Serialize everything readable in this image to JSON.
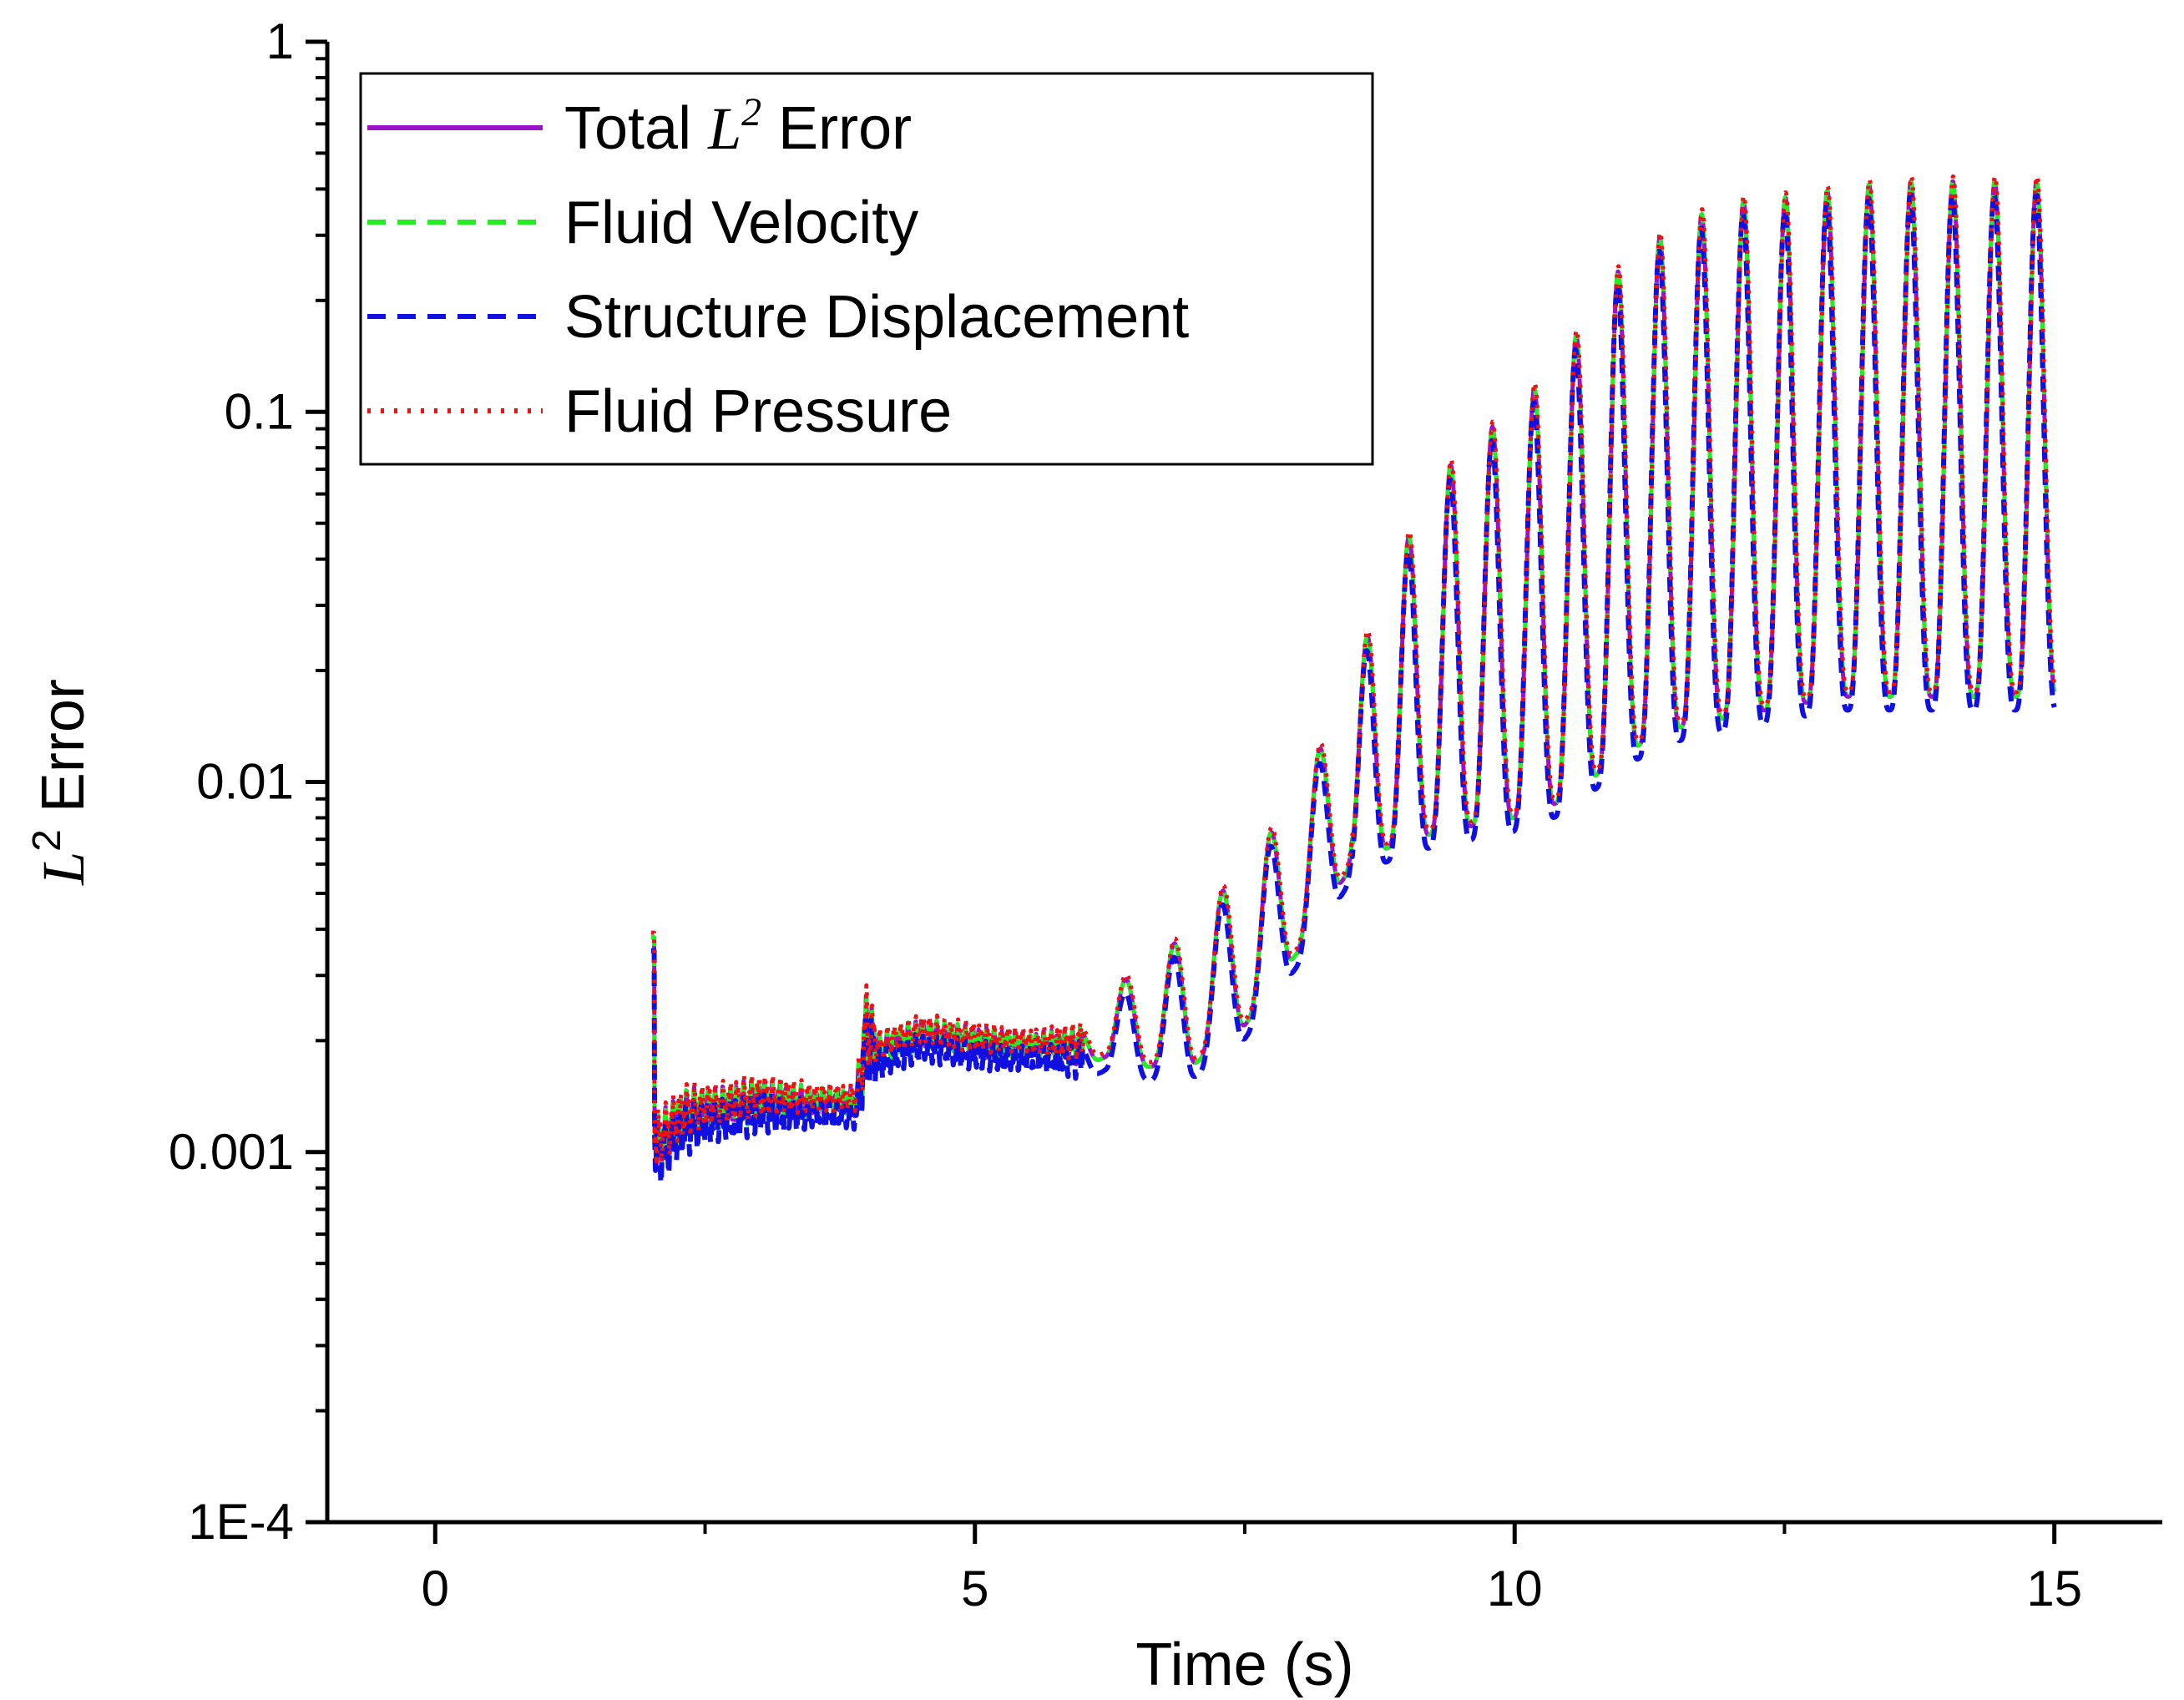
{
  "chart_data": {
    "type": "line",
    "title": "",
    "xlabel": "Time (s)",
    "ylabel": {
      "italic": "L",
      "sup": "2",
      "rest": " Error"
    },
    "xlim": [
      -1,
      16
    ],
    "ylim": [
      0.0001,
      1
    ],
    "yscale": "log",
    "x_ticks": [
      0,
      5,
      10,
      15
    ],
    "x_tick_labels": [
      "0",
      "5",
      "10",
      "15"
    ],
    "y_ticks": [
      1,
      0.1,
      0.01,
      0.001,
      0.0001
    ],
    "y_tick_labels": [
      "1",
      "0.1",
      "0.01",
      "0.001",
      "1E-4"
    ],
    "grid": false,
    "legend_position": "top-left",
    "legend": [
      {
        "pre": "Total ",
        "math": "L",
        "sup": "2",
        "post": " Error",
        "color": "#9b12c9",
        "style": "solid"
      },
      {
        "pre": "Fluid Velocity",
        "math": "",
        "sup": "",
        "post": "",
        "color": "#22ee22",
        "style": "dashed"
      },
      {
        "pre": "Structure Displacement",
        "math": "",
        "sup": "",
        "post": "",
        "color": "#1010e0",
        "style": "dashed"
      },
      {
        "pre": "Fluid Pressure",
        "math": "",
        "sup": "",
        "post": "",
        "color": "#ee1111",
        "style": "dotted"
      }
    ],
    "envelope": {
      "x": [
        2.0,
        2.05,
        2.1,
        2.3,
        2.6,
        3.0,
        3.5,
        3.9,
        4.0,
        4.1,
        4.5,
        5.0,
        5.5,
        6.0,
        6.2,
        6.5,
        7.0,
        7.5,
        8.0,
        8.5,
        9.0,
        9.5,
        10.0,
        10.5,
        11.0,
        11.5,
        12.0,
        12.5,
        13.0,
        13.5,
        14.0,
        14.5,
        15.0
      ],
      "low": [
        0.0011,
        0.0008,
        0.0009,
        0.00105,
        0.00115,
        0.0012,
        0.00125,
        0.00125,
        0.0015,
        0.0017,
        0.0019,
        0.0018,
        0.0018,
        0.0017,
        0.0018,
        0.0017,
        0.0017,
        0.0022,
        0.0035,
        0.006,
        0.007,
        0.0075,
        0.008,
        0.009,
        0.012,
        0.014,
        0.015,
        0.016,
        0.017,
        0.017,
        0.017,
        0.017,
        0.017
      ],
      "high": [
        0.0038,
        0.0013,
        0.0013,
        0.0015,
        0.0015,
        0.0016,
        0.0015,
        0.0015,
        0.003,
        0.0021,
        0.0023,
        0.0022,
        0.0021,
        0.0022,
        0.0028,
        0.003,
        0.004,
        0.006,
        0.009,
        0.02,
        0.045,
        0.08,
        0.1,
        0.15,
        0.25,
        0.32,
        0.37,
        0.38,
        0.4,
        0.42,
        0.42,
        0.42,
        0.42
      ]
    }
  }
}
